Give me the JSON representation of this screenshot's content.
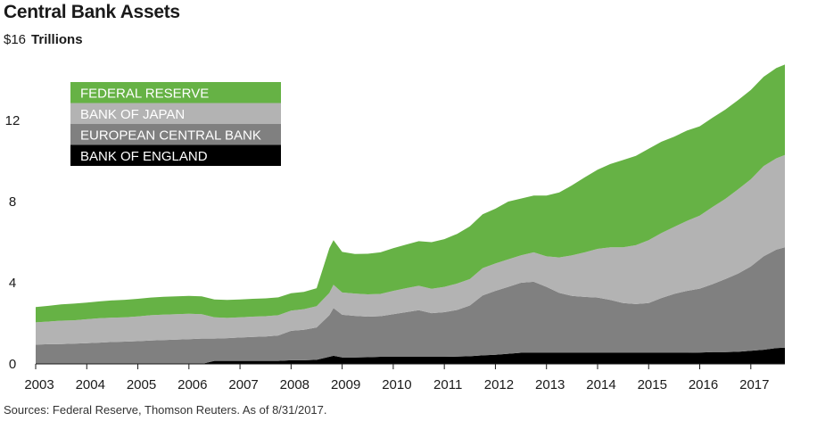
{
  "chart_data": {
    "type": "area",
    "stacked": true,
    "title": "Central Bank Assets",
    "ylabel": "Trillions",
    "ylabel_prefix": "$16",
    "ylim": [
      0,
      16
    ],
    "yticks": [
      0,
      4,
      8,
      12
    ],
    "xlim": [
      2003.0,
      2017.667
    ],
    "xticks": [
      "2003",
      "2004",
      "2005",
      "2006",
      "2007",
      "2008",
      "2009",
      "2010",
      "2011",
      "2012",
      "2013",
      "2014",
      "2015",
      "2016",
      "2017"
    ],
    "grid": false,
    "legend_position": "top-left",
    "x": [
      2003.0,
      2003.25,
      2003.5,
      2003.75,
      2004.0,
      2004.25,
      2004.5,
      2004.75,
      2005.0,
      2005.25,
      2005.5,
      2005.75,
      2006.0,
      2006.25,
      2006.5,
      2006.75,
      2007.0,
      2007.25,
      2007.5,
      2007.75,
      2008.0,
      2008.25,
      2008.5,
      2008.75,
      2008.83,
      2009.0,
      2009.25,
      2009.5,
      2009.75,
      2010.0,
      2010.25,
      2010.5,
      2010.75,
      2011.0,
      2011.25,
      2011.5,
      2011.75,
      2012.0,
      2012.25,
      2012.5,
      2012.75,
      2013.0,
      2013.25,
      2013.5,
      2013.75,
      2014.0,
      2014.25,
      2014.5,
      2014.75,
      2015.0,
      2015.25,
      2015.5,
      2015.75,
      2016.0,
      2016.25,
      2016.5,
      2016.75,
      2017.0,
      2017.25,
      2017.5,
      2017.667
    ],
    "series": [
      {
        "name": "BANK OF ENGLAND",
        "color": "#000000",
        "values": [
          0,
          0,
          0,
          0,
          0,
          0,
          0,
          0,
          0,
          0,
          0,
          0,
          0,
          0,
          0.15,
          0.15,
          0.15,
          0.15,
          0.15,
          0.15,
          0.18,
          0.18,
          0.2,
          0.35,
          0.4,
          0.32,
          0.32,
          0.33,
          0.35,
          0.35,
          0.35,
          0.35,
          0.35,
          0.35,
          0.36,
          0.38,
          0.42,
          0.45,
          0.5,
          0.55,
          0.55,
          0.55,
          0.55,
          0.55,
          0.55,
          0.55,
          0.55,
          0.55,
          0.55,
          0.55,
          0.55,
          0.55,
          0.55,
          0.56,
          0.58,
          0.58,
          0.6,
          0.65,
          0.7,
          0.78,
          0.8
        ]
      },
      {
        "name": "EUROPEAN CENTRAL BANK",
        "color": "#808080",
        "values": [
          0.95,
          0.97,
          0.98,
          1.0,
          1.02,
          1.05,
          1.08,
          1.1,
          1.12,
          1.15,
          1.18,
          1.2,
          1.22,
          1.25,
          1.1,
          1.12,
          1.15,
          1.18,
          1.2,
          1.25,
          1.45,
          1.5,
          1.6,
          2.05,
          2.35,
          2.1,
          2.05,
          2.0,
          2.0,
          2.1,
          2.2,
          2.3,
          2.15,
          2.2,
          2.3,
          2.5,
          2.95,
          3.15,
          3.3,
          3.45,
          3.5,
          3.25,
          2.95,
          2.8,
          2.75,
          2.72,
          2.6,
          2.45,
          2.4,
          2.45,
          2.7,
          2.9,
          3.05,
          3.15,
          3.35,
          3.6,
          3.85,
          4.15,
          4.6,
          4.85,
          4.95
        ]
      },
      {
        "name": "BANK OF JAPAN",
        "color": "#b3b3b3",
        "values": [
          1.1,
          1.12,
          1.15,
          1.15,
          1.18,
          1.2,
          1.2,
          1.2,
          1.22,
          1.25,
          1.25,
          1.25,
          1.25,
          1.2,
          1.05,
          1.0,
          1.0,
          1.0,
          1.0,
          1.0,
          1.0,
          1.02,
          1.05,
          1.1,
          1.15,
          1.1,
          1.1,
          1.1,
          1.1,
          1.15,
          1.18,
          1.2,
          1.2,
          1.25,
          1.3,
          1.3,
          1.35,
          1.35,
          1.35,
          1.35,
          1.45,
          1.5,
          1.75,
          2.0,
          2.2,
          2.4,
          2.6,
          2.75,
          2.9,
          3.1,
          3.2,
          3.3,
          3.45,
          3.6,
          3.8,
          3.95,
          4.15,
          4.3,
          4.45,
          4.5,
          4.55
        ]
      },
      {
        "name": "FEDERAL RESERVE",
        "color": "#66b245",
        "values": [
          0.75,
          0.77,
          0.8,
          0.82,
          0.82,
          0.83,
          0.85,
          0.86,
          0.87,
          0.87,
          0.88,
          0.88,
          0.88,
          0.88,
          0.88,
          0.88,
          0.88,
          0.88,
          0.88,
          0.88,
          0.85,
          0.85,
          0.88,
          2.2,
          2.2,
          2.0,
          1.95,
          2.0,
          2.05,
          2.1,
          2.15,
          2.2,
          2.3,
          2.35,
          2.45,
          2.6,
          2.65,
          2.7,
          2.85,
          2.8,
          2.8,
          3.0,
          3.2,
          3.45,
          3.7,
          3.9,
          4.1,
          4.3,
          4.4,
          4.5,
          4.5,
          4.45,
          4.45,
          4.4,
          4.4,
          4.4,
          4.4,
          4.4,
          4.4,
          4.45,
          4.45
        ]
      }
    ],
    "source_note": "Sources: Federal Reserve, Thomson Reuters. As of 8/31/2017."
  }
}
